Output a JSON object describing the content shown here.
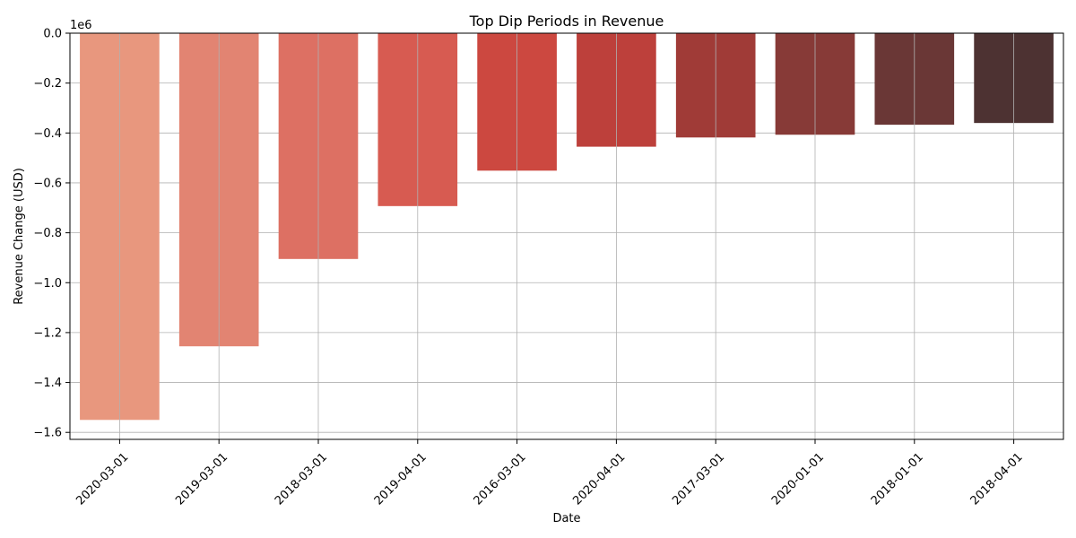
{
  "chart_data": {
    "type": "bar",
    "title": "Top Dip Periods in Revenue",
    "xlabel": "Date",
    "ylabel": "Revenue Change (USD)",
    "y_offset_label": "1e6",
    "categories": [
      "2020-03-01",
      "2019-03-01",
      "2018-03-01",
      "2019-04-01",
      "2016-03-01",
      "2020-04-01",
      "2017-03-01",
      "2020-01-01",
      "2018-01-01",
      "2018-04-01"
    ],
    "values": [
      -1550000,
      -1255000,
      -905000,
      -693000,
      -551000,
      -455000,
      -418000,
      -407000,
      -367000,
      -360000
    ],
    "colors": [
      "#e8977e",
      "#e28472",
      "#dd7063",
      "#d75b51",
      "#cc4840",
      "#bd403b",
      "#a03b37",
      "#873a37",
      "#6a3736",
      "#4d3232"
    ],
    "ylim": [
      -1628000,
      0
    ],
    "yticks": [
      0,
      -200000,
      -400000,
      -600000,
      -800000,
      -1000000,
      -1200000,
      -1400000,
      -1600000
    ],
    "ytick_labels": [
      "0.0",
      "−0.2",
      "−0.4",
      "−0.6",
      "−0.8",
      "−1.0",
      "−1.2",
      "−1.4",
      "−1.6"
    ],
    "grid": true
  }
}
